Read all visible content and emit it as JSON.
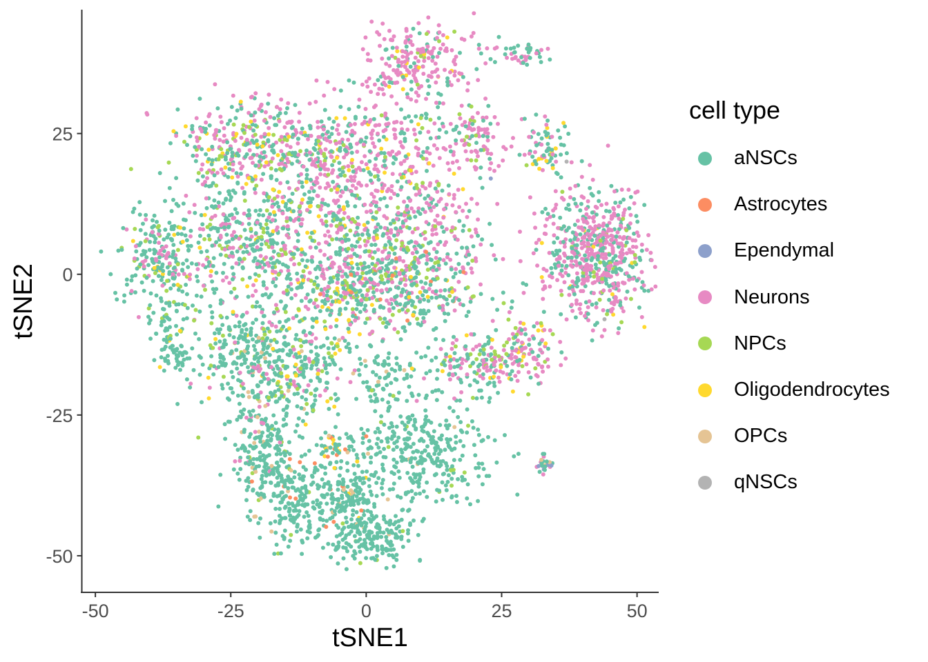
{
  "chart_data": {
    "type": "scatter",
    "xlabel": "tSNE1",
    "ylabel": "tSNE2",
    "xlim": [
      -52.5,
      54
    ],
    "ylim": [
      -56.5,
      47
    ],
    "xticks": [
      -50,
      -25,
      0,
      25,
      50
    ],
    "yticks": [
      -50,
      -25,
      0,
      25
    ],
    "grid": false,
    "legend_position": "right",
    "legend_title": "cell type",
    "categories": [
      {
        "name": "aNSCs",
        "color": "#66C2A5"
      },
      {
        "name": "Astrocytes",
        "color": "#FC8D62"
      },
      {
        "name": "Ependymal",
        "color": "#8DA0CB"
      },
      {
        "name": "Neurons",
        "color": "#E78AC3"
      },
      {
        "name": "NPCs",
        "color": "#A6D854"
      },
      {
        "name": "Oligodendrocytes",
        "color": "#FFD92F"
      },
      {
        "name": "OPCs",
        "color": "#E5C494"
      },
      {
        "name": "qNSCs",
        "color": "#B3B3B3"
      }
    ],
    "clusters": [
      {
        "cx": 9,
        "cy": 38,
        "sx": 5,
        "sy": 3.5,
        "n": 220,
        "mix": {
          "Neurons": 0.75,
          "aNSCs": 0.17,
          "NPCs": 0.05,
          "Oligodendrocytes": 0.03
        }
      },
      {
        "cx": -22,
        "cy": 23,
        "sx": 6,
        "sy": 4,
        "n": 260,
        "mix": {
          "Neurons": 0.45,
          "aNSCs": 0.35,
          "NPCs": 0.12,
          "Oligodendrocytes": 0.08
        }
      },
      {
        "cx": -10,
        "cy": 22,
        "sx": 6,
        "sy": 4,
        "n": 180,
        "mix": {
          "Neurons": 0.5,
          "aNSCs": 0.35,
          "NPCs": 0.1,
          "Oligodendrocytes": 0.05
        }
      },
      {
        "cx": 4,
        "cy": 24,
        "sx": 7,
        "sy": 5,
        "n": 200,
        "mix": {
          "Neurons": 0.55,
          "aNSCs": 0.33,
          "NPCs": 0.08,
          "Oligodendrocytes": 0.04
        }
      },
      {
        "cx": 20,
        "cy": 24,
        "sx": 2.5,
        "sy": 3,
        "n": 90,
        "mix": {
          "Neurons": 0.7,
          "aNSCs": 0.22,
          "NPCs": 0.08
        }
      },
      {
        "cx": 28.5,
        "cy": 39,
        "sx": 2.5,
        "sy": 1,
        "n": 45,
        "mix": {
          "aNSCs": 0.7,
          "Neurons": 0.3
        }
      },
      {
        "cx": 33,
        "cy": 23,
        "sx": 2,
        "sy": 3,
        "n": 80,
        "mix": {
          "aNSCs": 0.55,
          "Neurons": 0.2,
          "Oligodendrocytes": 0.15,
          "NPCs": 0.1
        }
      },
      {
        "cx": -38,
        "cy": 3,
        "sx": 4,
        "sy": 4,
        "n": 200,
        "mix": {
          "aNSCs": 0.65,
          "Neurons": 0.18,
          "NPCs": 0.12,
          "Oligodendrocytes": 0.05
        }
      },
      {
        "cx": -22,
        "cy": 7,
        "sx": 7,
        "sy": 7,
        "n": 420,
        "mix": {
          "aNSCs": 0.6,
          "Neurons": 0.22,
          "NPCs": 0.13,
          "Oligodendrocytes": 0.05
        }
      },
      {
        "cx": -5,
        "cy": 7,
        "sx": 8,
        "sy": 8,
        "n": 480,
        "mix": {
          "aNSCs": 0.45,
          "Neurons": 0.35,
          "NPCs": 0.15,
          "Oligodendrocytes": 0.05
        }
      },
      {
        "cx": 10,
        "cy": 8,
        "sx": 6,
        "sy": 7,
        "n": 320,
        "mix": {
          "Neurons": 0.5,
          "aNSCs": 0.35,
          "NPCs": 0.1,
          "Oligodendrocytes": 0.05
        }
      },
      {
        "cx": 3,
        "cy": -3,
        "sx": 9,
        "sy": 3.5,
        "n": 380,
        "mix": {
          "aNSCs": 0.6,
          "Neurons": 0.2,
          "NPCs": 0.12,
          "Oligodendrocytes": 0.05,
          "Astrocytes": 0.03
        }
      },
      {
        "cx": -37,
        "cy": -9,
        "sx": 2,
        "sy": 4,
        "n": 70,
        "mix": {
          "aNSCs": 0.8,
          "NPCs": 0.1,
          "Oligodendrocytes": 0.1
        }
      },
      {
        "cx": -35,
        "cy": -14,
        "sx": 1.2,
        "sy": 1.5,
        "n": 30,
        "mix": {
          "aNSCs": 1.0
        }
      },
      {
        "cx": -21,
        "cy": -15,
        "sx": 5,
        "sy": 5,
        "n": 330,
        "mix": {
          "aNSCs": 0.72,
          "Neurons": 0.12,
          "NPCs": 0.1,
          "OPCs": 0.03,
          "Oligodendrocytes": 0.03
        }
      },
      {
        "cx": -9,
        "cy": -15,
        "sx": 4,
        "sy": 5,
        "n": 180,
        "mix": {
          "aNSCs": 0.72,
          "Neurons": 0.1,
          "NPCs": 0.1,
          "Oligodendrocytes": 0.05,
          "OPCs": 0.03
        }
      },
      {
        "cx": 4,
        "cy": -18,
        "sx": 3,
        "sy": 4,
        "n": 80,
        "mix": {
          "aNSCs": 0.9,
          "NPCs": 0.05,
          "OPCs": 0.05
        }
      },
      {
        "cx": -19,
        "cy": -30,
        "sx": 3,
        "sy": 4,
        "n": 180,
        "mix": {
          "aNSCs": 0.88,
          "Neurons": 0.04,
          "NPCs": 0.04,
          "OPCs": 0.04
        }
      },
      {
        "cx": -13,
        "cy": -40,
        "sx": 4,
        "sy": 4,
        "n": 230,
        "mix": {
          "aNSCs": 0.92,
          "OPCs": 0.03,
          "Astrocytes": 0.03,
          "NPCs": 0.02
        }
      },
      {
        "cx": -3,
        "cy": -40,
        "sx": 3,
        "sy": 4,
        "n": 170,
        "mix": {
          "aNSCs": 0.9,
          "OPCs": 0.04,
          "Oligodendrocytes": 0.03,
          "Astrocytes": 0.03
        }
      },
      {
        "cx": 11,
        "cy": -32,
        "sx": 6,
        "sy": 5,
        "n": 330,
        "mix": {
          "aNSCs": 0.95,
          "NPCs": 0.03,
          "OPCs": 0.02
        }
      },
      {
        "cx": 2,
        "cy": -47,
        "sx": 3.5,
        "sy": 2.5,
        "n": 160,
        "mix": {
          "aNSCs": 0.95,
          "NPCs": 0.03,
          "OPCs": 0.02
        }
      },
      {
        "cx": -5,
        "cy": -31,
        "sx": 3,
        "sy": 1.5,
        "n": 55,
        "mix": {
          "aNSCs": 0.7,
          "Oligodendrocytes": 0.15,
          "OPCs": 0.1,
          "Astrocytes": 0.05
        }
      },
      {
        "cx": 20,
        "cy": -16,
        "sx": 4,
        "sy": 2.5,
        "n": 150,
        "mix": {
          "aNSCs": 0.55,
          "Neurons": 0.3,
          "NPCs": 0.1,
          "Oligodendrocytes": 0.05
        }
      },
      {
        "cx": 29,
        "cy": -14,
        "sx": 3,
        "sy": 3,
        "n": 120,
        "mix": {
          "Neurons": 0.5,
          "aNSCs": 0.3,
          "NPCs": 0.12,
          "Oligodendrocytes": 0.08
        }
      },
      {
        "cx": 42,
        "cy": 3,
        "sx": 5,
        "sy": 5.5,
        "n": 620,
        "mix": {
          "Neurons": 0.6,
          "aNSCs": 0.33,
          "NPCs": 0.05,
          "Oligodendrocytes": 0.02
        }
      },
      {
        "cx": 33,
        "cy": -33.5,
        "sx": 0.8,
        "sy": 0.8,
        "n": 22,
        "mix": {
          "aNSCs": 0.5,
          "Neurons": 0.2,
          "Ependymal": 0.15,
          "OPCs": 0.15
        }
      }
    ],
    "single_points": [
      {
        "x": -31,
        "y": -29,
        "category": "NPCs"
      },
      {
        "x": 44,
        "y": -8,
        "category": "qNSCs"
      },
      {
        "x": 37,
        "y": 20,
        "category": "qNSCs"
      },
      {
        "x": 23,
        "y": 17,
        "category": "Ependymal"
      },
      {
        "x": 4,
        "y": -40,
        "category": "OPCs"
      }
    ]
  }
}
